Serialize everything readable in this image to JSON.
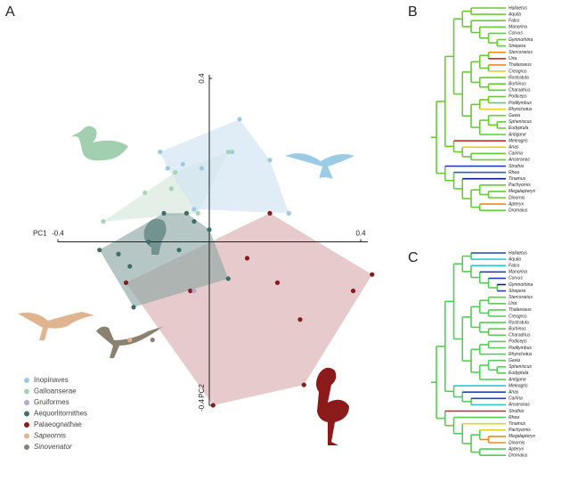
{
  "chart_data": [
    {
      "type": "scatter",
      "panel": "A",
      "xlabel": "PC1",
      "ylabel": "PC2",
      "xlim": [
        -0.4,
        0.4
      ],
      "ylim": [
        -0.4,
        0.4
      ],
      "xticks": [
        -0.4,
        0.4
      ],
      "yticks": [
        -0.4,
        0.4
      ],
      "series": [
        {
          "name": "Palaeognathae",
          "color": "#8b1a1a",
          "hull_color": "#d9aeb1",
          "x": [
            0.16,
            0.43,
            0.38,
            0.25,
            0.24,
            -0.22,
            -0.05,
            0.01,
            0.18,
            0.1
          ],
          "y": [
            0.07,
            -0.08,
            -0.12,
            -0.35,
            -0.19,
            -0.1,
            -0.12,
            -0.4,
            -0.1,
            -0.04
          ]
        },
        {
          "name": "Galloanserae",
          "color": "#a8d4b5",
          "hull_color": "#d6e8da",
          "x": [
            -0.28,
            -0.17,
            -0.1,
            -0.09,
            0.05,
            -0.03
          ],
          "y": [
            0.05,
            0.12,
            0.13,
            0.17,
            0.22,
            0.07
          ]
        },
        {
          "name": "Inopinaves",
          "color": "#9ccbe0",
          "hull_color": "#cfe4f1",
          "x": [
            -0.11,
            -0.07,
            -0.02,
            0.06,
            0.16,
            0.21,
            -0.04,
            0.08,
            -0.13
          ],
          "y": [
            0.18,
            0.19,
            0.18,
            0.22,
            0.2,
            0.07,
            0.08,
            0.3,
            0.22
          ]
        },
        {
          "name": "Gruiformes",
          "color": "#b8a8c8",
          "x": [
            -0.04
          ],
          "y": [
            -0.12
          ]
        },
        {
          "name": "Aequorlitornithes",
          "color": "#3f6e6a",
          "hull_color": "#8fa8a4",
          "x": [
            -0.29,
            -0.24,
            -0.21,
            -0.12,
            -0.06,
            -0.04,
            -0.08,
            0.05,
            0.0,
            -0.16,
            -0.2
          ],
          "y": [
            -0.02,
            -0.03,
            -0.06,
            0.07,
            0.07,
            0.05,
            -0.02,
            -0.09,
            0.03,
            0.0,
            -0.16
          ]
        },
        {
          "name": "Sapeornis",
          "color": "#e0b48f",
          "x": [
            -0.21
          ],
          "y": [
            -0.24
          ]
        },
        {
          "name": "Sinovenator",
          "color": "#8c8070",
          "x": [
            -0.15
          ],
          "y": [
            -0.24
          ]
        }
      ],
      "legend_order": [
        2,
        1,
        3,
        4,
        0,
        5,
        6
      ]
    },
    {
      "type": "tree",
      "panel": "B",
      "branch_color": "#66cc33",
      "taxa": [
        "Haliaetus",
        "Aquila",
        "Falco",
        "Manorina",
        "Corvus",
        "Gymnorhina",
        "Strepera",
        "Stercorarius",
        "Uria",
        "Thalasseus",
        "Creagrus",
        "Rostratula",
        "Burhinus",
        "Charadrius",
        "Podiceps",
        "Podilymbus",
        "Rhynchotus",
        "Gavia",
        "Spheniscus",
        "Eudyptula",
        "Antigone",
        "Meleagris",
        "Anas",
        "Cairina",
        "Anseranas",
        "Struthio",
        "Rhea",
        "Tinamus",
        "Pachyornis",
        "Megalapteryx",
        "Dinornis",
        "Apteryx",
        "Dromaius"
      ],
      "tip_colors": [
        "#66cc33",
        "#66cc33",
        "#66cc33",
        "#66cc33",
        "#66cc33",
        "#66cc33",
        "#66cc33",
        "#f08a1a",
        "#e02020",
        "#f08a1a",
        "#f0c020",
        "#66cc33",
        "#66cc33",
        "#66cc33",
        "#66cc33",
        "#66cc33",
        "#e8d020",
        "#66cc33",
        "#66cc33",
        "#66cc33",
        "#66cc33",
        "#e02020",
        "#e8d020",
        "#66cc33",
        "#66cc33",
        "#2030c0",
        "#2060d0",
        "#101890",
        "#66cc33",
        "#66cc33",
        "#66cc33",
        "#f08a1a",
        "#66cc33"
      ]
    },
    {
      "type": "tree",
      "panel": "C",
      "branch_color": "#55cc55",
      "taxa": [
        "Haliaetus",
        "Aquila",
        "Falco",
        "Manorina",
        "Corvus",
        "Gymnorhina",
        "Strepera",
        "Stercorarius",
        "Uria",
        "Thalasseus",
        "Creagrus",
        "Rostratula",
        "Burhinus",
        "Charadrius",
        "Podiceps",
        "Podilymbus",
        "Rhynchotus",
        "Gavia",
        "Spheniscus",
        "Eudyptula",
        "Antigone",
        "Meleagris",
        "Anas",
        "Cairina",
        "Anseranas",
        "Struthio",
        "Rhea",
        "Tinamus",
        "Pachyornis",
        "Megalapteryx",
        "Dinornis",
        "Apteryx",
        "Dromaius"
      ],
      "tip_colors": [
        "#2040c0",
        "#30c8d0",
        "#30c8d0",
        "#2040c0",
        "#2040c0",
        "#101890",
        "#2040c0",
        "#55cc55",
        "#55cc55",
        "#55cc55",
        "#55cc55",
        "#55cc55",
        "#55cc55",
        "#55cc55",
        "#55cc55",
        "#55cc55",
        "#55cc55",
        "#55cc55",
        "#55cc55",
        "#55cc55",
        "#55cc55",
        "#30c8d0",
        "#2040c0",
        "#2040c0",
        "#30c8d0",
        "#e02020",
        "#55cc55",
        "#e8d020",
        "#e8d020",
        "#f08a1a",
        "#f08a1a",
        "#55cc55",
        "#55cc55"
      ]
    }
  ]
}
